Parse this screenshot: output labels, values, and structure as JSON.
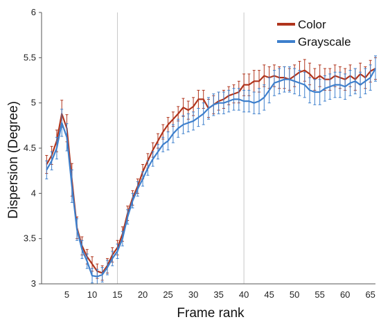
{
  "chart_data": {
    "type": "line",
    "title": "",
    "xlabel": "Frame rank",
    "ylabel": "Dispersion (Degree)",
    "xlim": [
      0,
      66
    ],
    "ylim": [
      3,
      6
    ],
    "xticks": [
      "5",
      "10",
      "15",
      "20",
      "25",
      "30",
      "35",
      "40",
      "45",
      "50",
      "55",
      "60",
      "65"
    ],
    "yticks": [
      "3",
      "3.5",
      "4",
      "4.5",
      "5",
      "5.5",
      "6"
    ],
    "vertical_lines": [
      15,
      40
    ],
    "legend_position": "top-right",
    "x": [
      1,
      2,
      3,
      4,
      5,
      6,
      7,
      8,
      9,
      10,
      11,
      12,
      13,
      14,
      15,
      16,
      17,
      18,
      19,
      20,
      21,
      22,
      23,
      24,
      25,
      26,
      27,
      28,
      29,
      30,
      31,
      32,
      33,
      34,
      35,
      36,
      37,
      38,
      39,
      40,
      41,
      42,
      43,
      44,
      45,
      46,
      47,
      48,
      49,
      50,
      51,
      52,
      53,
      54,
      55,
      56,
      57,
      58,
      59,
      60,
      61,
      62,
      63,
      64,
      65,
      66
    ],
    "series": [
      {
        "name": "Color",
        "color": "#b0341c",
        "values": [
          4.32,
          4.42,
          4.58,
          4.88,
          4.72,
          4.15,
          3.62,
          3.42,
          3.3,
          3.22,
          3.14,
          3.12,
          3.2,
          3.32,
          3.4,
          3.55,
          3.78,
          3.95,
          4.08,
          4.24,
          4.36,
          4.48,
          4.58,
          4.68,
          4.76,
          4.82,
          4.88,
          4.95,
          4.92,
          4.96,
          5.04,
          5.04,
          4.94,
          4.98,
          5.02,
          5.04,
          5.08,
          5.1,
          5.12,
          5.2,
          5.2,
          5.24,
          5.24,
          5.3,
          5.28,
          5.3,
          5.28,
          5.28,
          5.26,
          5.3,
          5.34,
          5.36,
          5.32,
          5.26,
          5.3,
          5.26,
          5.26,
          5.3,
          5.28,
          5.26,
          5.3,
          5.26,
          5.32,
          5.28,
          5.35,
          5.38
        ],
        "error": [
          0.1,
          0.1,
          0.12,
          0.15,
          0.15,
          0.18,
          0.12,
          0.1,
          0.08,
          0.08,
          0.08,
          0.08,
          0.08,
          0.08,
          0.08,
          0.08,
          0.08,
          0.08,
          0.08,
          0.08,
          0.08,
          0.08,
          0.08,
          0.08,
          0.08,
          0.08,
          0.08,
          0.1,
          0.1,
          0.1,
          0.1,
          0.1,
          0.1,
          0.1,
          0.1,
          0.1,
          0.1,
          0.1,
          0.12,
          0.12,
          0.12,
          0.12,
          0.12,
          0.12,
          0.12,
          0.12,
          0.12,
          0.12,
          0.12,
          0.12,
          0.12,
          0.12,
          0.12,
          0.12,
          0.12,
          0.12,
          0.12,
          0.12,
          0.12,
          0.12,
          0.12,
          0.12,
          0.12,
          0.12,
          0.12,
          0.12
        ]
      },
      {
        "name": "Grayscale",
        "color": "#3d7fcc",
        "values": [
          4.26,
          4.36,
          4.5,
          4.78,
          4.62,
          4.08,
          3.6,
          3.38,
          3.25,
          3.09,
          3.08,
          3.1,
          3.18,
          3.28,
          3.36,
          3.5,
          3.74,
          3.92,
          4.05,
          4.16,
          4.28,
          4.38,
          4.46,
          4.54,
          4.58,
          4.66,
          4.72,
          4.76,
          4.78,
          4.8,
          4.84,
          4.88,
          4.94,
          4.98,
          5.0,
          5.0,
          5.02,
          5.04,
          5.04,
          5.02,
          5.02,
          5.0,
          5.02,
          5.06,
          5.14,
          5.22,
          5.24,
          5.26,
          5.26,
          5.24,
          5.22,
          5.2,
          5.14,
          5.12,
          5.12,
          5.16,
          5.18,
          5.2,
          5.2,
          5.18,
          5.22,
          5.24,
          5.2,
          5.24,
          5.28,
          5.38
        ],
        "error": [
          0.1,
          0.1,
          0.12,
          0.15,
          0.15,
          0.18,
          0.12,
          0.1,
          0.08,
          0.08,
          0.08,
          0.08,
          0.08,
          0.08,
          0.08,
          0.08,
          0.08,
          0.08,
          0.08,
          0.08,
          0.08,
          0.08,
          0.08,
          0.08,
          0.1,
          0.1,
          0.1,
          0.1,
          0.1,
          0.1,
          0.1,
          0.12,
          0.12,
          0.12,
          0.12,
          0.12,
          0.12,
          0.12,
          0.12,
          0.12,
          0.12,
          0.12,
          0.14,
          0.14,
          0.14,
          0.14,
          0.14,
          0.14,
          0.14,
          0.14,
          0.14,
          0.14,
          0.14,
          0.14,
          0.14,
          0.14,
          0.14,
          0.14,
          0.14,
          0.14,
          0.14,
          0.14,
          0.14,
          0.14,
          0.14,
          0.14
        ]
      }
    ]
  }
}
